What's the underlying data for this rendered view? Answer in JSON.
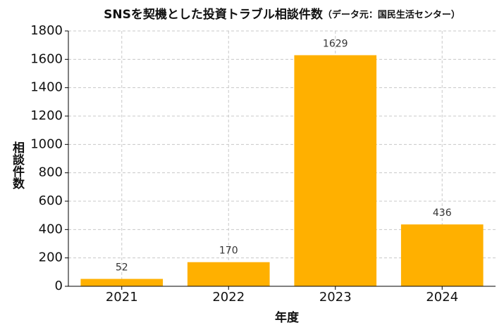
{
  "chart_data": {
    "type": "bar",
    "title": "SNSを契機とした投資トラブル相談件数",
    "subtitle": "（データ元：国民生活センター）",
    "xlabel": "年度",
    "ylabel": "相談件数",
    "categories": [
      "2021",
      "2022",
      "2023",
      "2024"
    ],
    "values": [
      52,
      170,
      1629,
      436
    ],
    "color": "#ffb000",
    "ylim": [
      0,
      1800
    ],
    "yticks": [
      0,
      200,
      400,
      600,
      800,
      1000,
      1200,
      1400,
      1600,
      1800
    ],
    "grid": true
  }
}
